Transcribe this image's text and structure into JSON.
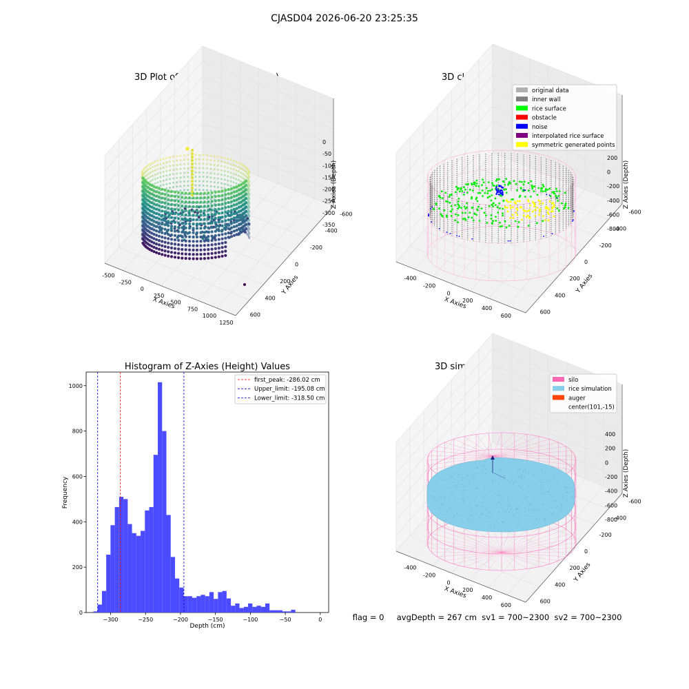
{
  "figure_title": "CJASD04 2026-06-20 23:25:35",
  "status_line": "flag = 0     avgDepth = 267 cm  sv1 = 700~2300  sv2 = 700~2300",
  "colors": {
    "histogram": "#4b4bff",
    "first_peak_line": "#ff0000",
    "limit_lines": "#0000cc",
    "silo_wire": "#ff69b4",
    "rice_surface": "#87ceeb"
  },
  "chart_data": [
    {
      "type": "scatter",
      "subtype": "3d",
      "title": "3D Plot of Silo Interior(row data)",
      "xlabel": "X Axies",
      "ylabel": "Y Axies",
      "zlabel": "Z Axies (Depth)",
      "x_ticks": [
        "-500",
        "-250",
        "0",
        "250",
        "500",
        "750",
        "1000",
        "1250"
      ],
      "y_ticks": [
        "-600",
        "-400",
        "-200",
        "0",
        "200",
        "400",
        "600"
      ],
      "z_ticks": [
        "0",
        "-50",
        "-100",
        "-150",
        "-200",
        "-250",
        "-300",
        "-350"
      ],
      "colormap": "viridis",
      "grid": true
    },
    {
      "type": "scatter",
      "subtype": "3d",
      "title": "3D classify of Silo Interior",
      "xlabel": "X Axies",
      "ylabel": "Y Axies",
      "zlabel": "Z Axies (Depth)",
      "x_ticks": [
        "-400",
        "-200",
        "0",
        "200",
        "400",
        "600"
      ],
      "y_ticks": [
        "-600",
        "-400",
        "-200",
        "0",
        "200",
        "400",
        "600"
      ],
      "z_ticks": [
        "200",
        "0",
        "-200",
        "-400",
        "-600",
        "-800"
      ],
      "z_ticks_visible_extra": [
        "00"
      ],
      "legend": [
        {
          "label": "original data",
          "color": "#b0b0b0"
        },
        {
          "label": "inner wall",
          "color": "#808080"
        },
        {
          "label": "rice surface",
          "color": "#00ff00"
        },
        {
          "label": "obstacle",
          "color": "#ff0000"
        },
        {
          "label": "noise",
          "color": "#0000ff"
        },
        {
          "label": "interpolated rice surface",
          "color": "#800080"
        },
        {
          "label": "symmetric generated points",
          "color": "#ffff00"
        }
      ],
      "legend_position": "top-right",
      "grid": true
    },
    {
      "type": "bar",
      "subtype": "histogram",
      "title": "Histogram of Z-Axies (Height) Values",
      "xlabel": "Depth (cm)",
      "ylabel": "Frequency",
      "xlim": [
        -335,
        12
      ],
      "ylim": [
        0,
        1060
      ],
      "x_ticks": [
        -300,
        -250,
        -200,
        -150,
        -100,
        -50,
        0
      ],
      "y_ticks": [
        0,
        200,
        400,
        600,
        800,
        1000
      ],
      "bin_start": -324.7,
      "bin_width": 6.15,
      "values": [
        5,
        35,
        95,
        255,
        385,
        465,
        510,
        500,
        390,
        350,
        338,
        360,
        450,
        465,
        695,
        1015,
        800,
        430,
        245,
        150,
        110,
        72,
        72,
        65,
        72,
        78,
        72,
        90,
        60,
        90,
        95,
        62,
        30,
        40,
        20,
        25,
        40,
        25,
        30,
        25,
        40,
        10,
        10,
        10,
        5,
        5,
        12
      ],
      "vlines": [
        {
          "label": "first_peak: -286.02 cm",
          "x": -286.02,
          "style": "dashed",
          "color": "#ff0000"
        },
        {
          "label": "Upper_limit: -195.08 cm",
          "x": -195.08,
          "style": "dashed",
          "color": "#0000cc"
        },
        {
          "label": "Lower_limit: -318.50 cm",
          "x": -318.5,
          "style": "dashed",
          "color": "#0000cc"
        }
      ],
      "legend_position": "top-right"
    },
    {
      "type": "scatter",
      "subtype": "3d-surface",
      "title": "3D simulation of Silo Interior",
      "xlabel": "X Axies",
      "ylabel": "Y Axies",
      "zlabel": "Z Axies (Depth)",
      "x_ticks": [
        "-400",
        "-200",
        "0",
        "200",
        "400",
        "600"
      ],
      "y_ticks": [
        "-600",
        "-400",
        "-200",
        "0",
        "200",
        "400",
        "600"
      ],
      "z_ticks": [
        "400",
        "200",
        "0",
        "-200",
        "-400",
        "-600",
        "-800"
      ],
      "legend": [
        {
          "label": "silo",
          "color": "#ff69b4"
        },
        {
          "label": "rice simulation",
          "color": "#87ceeb"
        },
        {
          "label": "auger",
          "color": "#ff4500"
        },
        {
          "label": "center(101,-15)",
          "color": ""
        }
      ],
      "legend_position": "top-right",
      "grid": true
    }
  ]
}
